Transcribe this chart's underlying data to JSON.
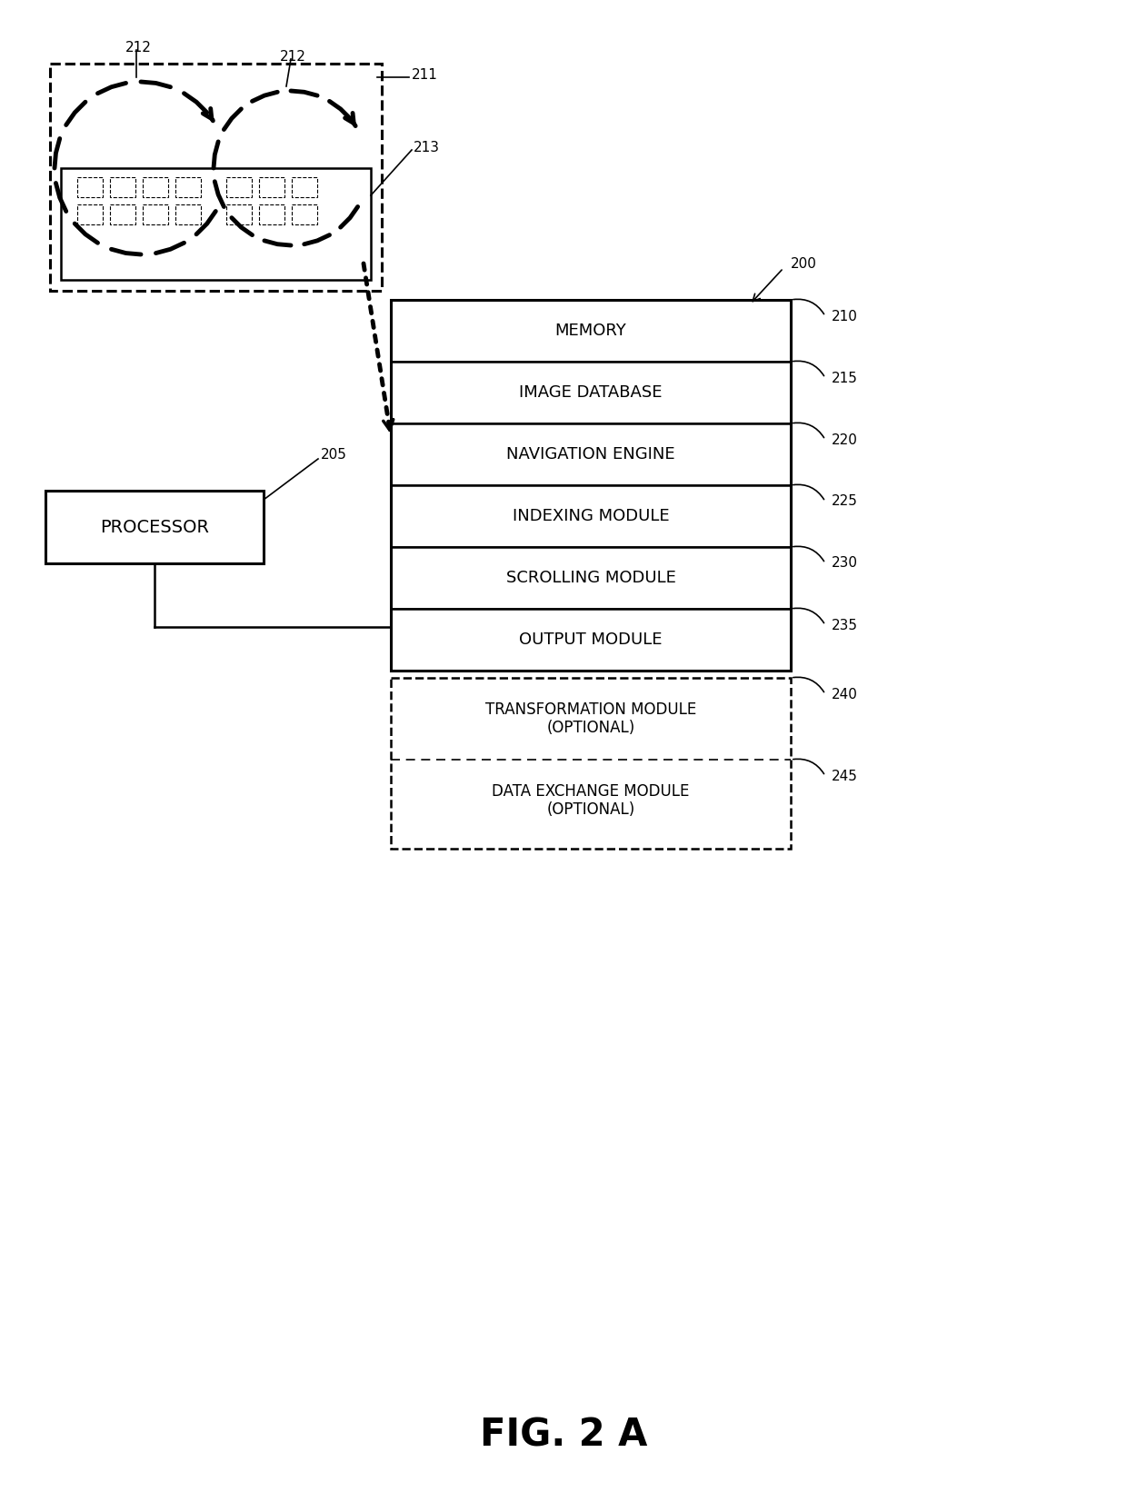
{
  "bg_color": "#ffffff",
  "fig_width": 12.4,
  "fig_height": 16.53,
  "title": "FIG. 2 A",
  "modules_solid": [
    "MEMORY",
    "IMAGE DATABASE",
    "NAVIGATION ENGINE",
    "INDEXING MODULE",
    "SCROLLING MODULE",
    "OUTPUT MODULE"
  ],
  "modules_dashed": [
    "TRANSFORMATION MODULE\n(OPTIONAL)",
    "DATA EXCHANGE MODULE\n(OPTIONAL)"
  ],
  "ref_solid": [
    "210",
    "215",
    "220",
    "225",
    "230",
    "235"
  ],
  "ref_dashed": [
    "240",
    "245"
  ],
  "processor_label": "PROCESSOR",
  "label_200": "200",
  "label_205": "205",
  "label_211": "211",
  "label_212a": "212",
  "label_212b": "212",
  "label_213": "213"
}
